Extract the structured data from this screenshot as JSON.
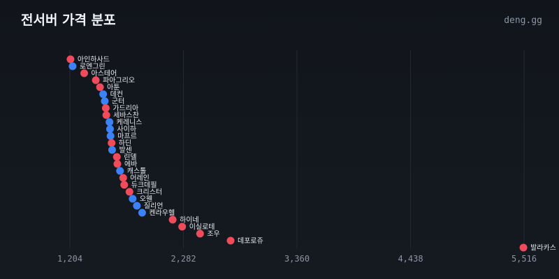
{
  "header": {
    "title": "전서버 가격 분포",
    "brand": "deng.gg"
  },
  "colors": {
    "red": "#ef4b5a",
    "blue": "#3b82f6"
  },
  "chart_data": {
    "type": "scatter",
    "title": "전서버 가격 분포",
    "xlim": [
      1204,
      5516
    ],
    "xticks": [
      1204,
      2282,
      3360,
      4438,
      5516
    ],
    "xtick_labels": [
      "1,204",
      "2,282",
      "3,360",
      "4,438",
      "5,516"
    ],
    "grid": "vertical",
    "points": [
      {
        "label": "아인하사드",
        "value": 1210,
        "group": "red"
      },
      {
        "label": "로엔그린",
        "value": 1230,
        "group": "blue"
      },
      {
        "label": "아스테어",
        "value": 1340,
        "group": "red"
      },
      {
        "label": "파아그리오",
        "value": 1450,
        "group": "red"
      },
      {
        "label": "아툰",
        "value": 1490,
        "group": "red"
      },
      {
        "label": "데컨",
        "value": 1520,
        "group": "blue"
      },
      {
        "label": "군터",
        "value": 1535,
        "group": "blue"
      },
      {
        "label": "가드리아",
        "value": 1545,
        "group": "red"
      },
      {
        "label": "세바스찬",
        "value": 1550,
        "group": "red"
      },
      {
        "label": "케레니스",
        "value": 1580,
        "group": "blue"
      },
      {
        "label": "사이하",
        "value": 1585,
        "group": "blue"
      },
      {
        "label": "마프르",
        "value": 1590,
        "group": "blue"
      },
      {
        "label": "하딘",
        "value": 1600,
        "group": "red"
      },
      {
        "label": "발센",
        "value": 1605,
        "group": "blue"
      },
      {
        "label": "린델",
        "value": 1650,
        "group": "red"
      },
      {
        "label": "에바",
        "value": 1655,
        "group": "red"
      },
      {
        "label": "캐스톨",
        "value": 1680,
        "group": "blue"
      },
      {
        "label": "어레인",
        "value": 1710,
        "group": "red"
      },
      {
        "label": "듀크데필",
        "value": 1720,
        "group": "red"
      },
      {
        "label": "크리스터",
        "value": 1770,
        "group": "red"
      },
      {
        "label": "오웬",
        "value": 1800,
        "group": "blue"
      },
      {
        "label": "질리언",
        "value": 1840,
        "group": "blue"
      },
      {
        "label": "켄라우헬",
        "value": 1890,
        "group": "blue"
      },
      {
        "label": "하이네",
        "value": 2180,
        "group": "red"
      },
      {
        "label": "이실로테",
        "value": 2270,
        "group": "red"
      },
      {
        "label": "조우",
        "value": 2440,
        "group": "red"
      },
      {
        "label": "데포로쥬",
        "value": 2730,
        "group": "red"
      },
      {
        "label": "발라카스",
        "value": 5510,
        "group": "red"
      }
    ]
  }
}
